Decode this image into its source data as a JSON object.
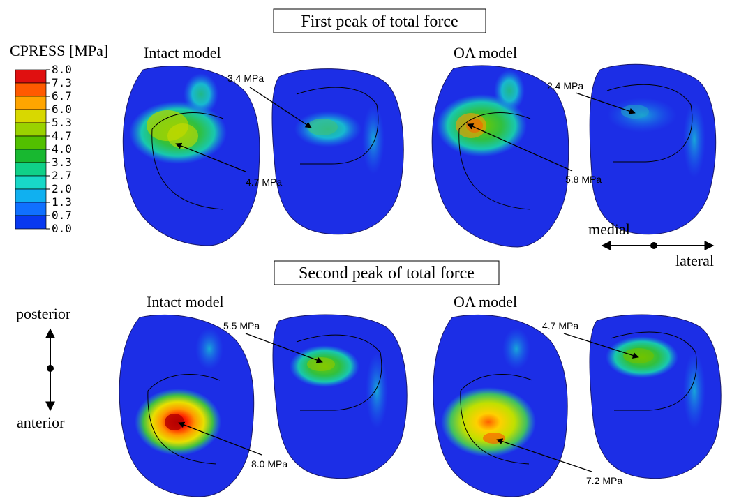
{
  "titles": {
    "first_peak": "First peak of total force",
    "second_peak": "Second peak of total force"
  },
  "legend": {
    "title": "CPRESS [MPa]",
    "ticks": [
      "8.0",
      "7.3",
      "6.7",
      "6.0",
      "5.3",
      "4.7",
      "4.0",
      "3.3",
      "2.7",
      "2.0",
      "1.3",
      "0.7",
      "0.0"
    ],
    "colors": [
      "#e01010",
      "#ff5a00",
      "#ffa500",
      "#d8d800",
      "#9ad200",
      "#52c000",
      "#18b830",
      "#10d088",
      "#18d8c8",
      "#10b0f0",
      "#1070ff",
      "#0838f0"
    ]
  },
  "panels": {
    "top_left_label": "Intact model",
    "top_right_label": "OA model",
    "bottom_left_label": "Intact model",
    "bottom_right_label": "OA model"
  },
  "annotations": {
    "p1": "3.4 MPa",
    "p2": "4.7 MPa",
    "p3": "2.4 MPa",
    "p4": "5.8 MPa",
    "p5": "5.5 MPa",
    "p6": "8.0 MPa",
    "p7": "4.7 MPa",
    "p8": "7.2 MPa"
  },
  "orientation": {
    "medial": "medial",
    "lateral": "lateral",
    "posterior": "posterior",
    "anterior": "anterior"
  },
  "colors": {
    "base_blue": "#1c2ee6",
    "dark_outline": "#1a1a40"
  }
}
